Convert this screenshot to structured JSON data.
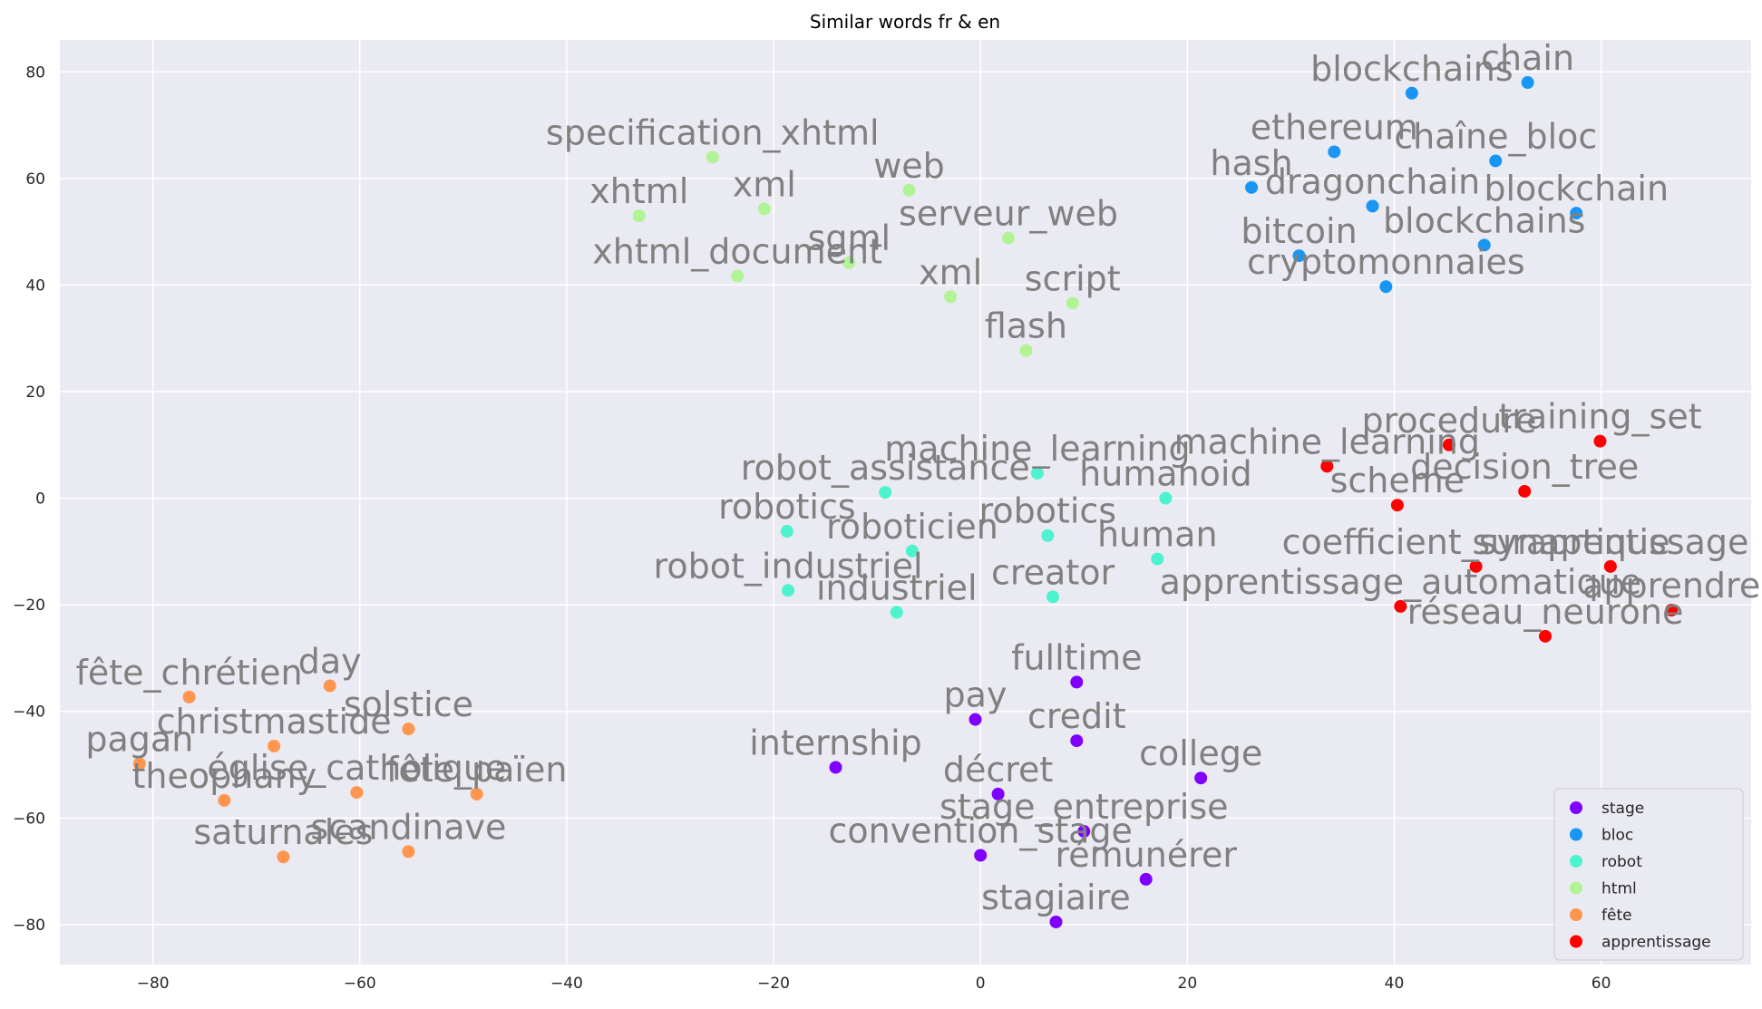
{
  "chart_data": {
    "type": "scatter",
    "title": "Similar words fr & en",
    "xlabel": "",
    "ylabel": "",
    "xlim": [
      -89,
      74.5
    ],
    "ylim": [
      -87.5,
      86
    ],
    "xticks": [
      -80,
      -60,
      -40,
      -20,
      0,
      20,
      40,
      60
    ],
    "yticks": [
      -80,
      -60,
      -40,
      -20,
      0,
      20,
      40,
      60,
      80
    ],
    "xtick_labels": [
      "−80",
      "−60",
      "−40",
      "−20",
      "0",
      "20",
      "40",
      "60"
    ],
    "ytick_labels": [
      "−80",
      "−60",
      "−40",
      "−20",
      "0",
      "20",
      "40",
      "60",
      "80"
    ],
    "grid": true,
    "legend_position": "lower-right",
    "background": "#eaeaf2",
    "series": [
      {
        "name": "stage",
        "color": "#8000ff",
        "points": [
          {
            "x": 9.3,
            "y": -34.5,
            "label": "fulltime"
          },
          {
            "x": -0.5,
            "y": -41.5,
            "label": "pay"
          },
          {
            "x": 9.3,
            "y": -45.5,
            "label": "credit"
          },
          {
            "x": -14.0,
            "y": -50.5,
            "label": "internship"
          },
          {
            "x": 21.3,
            "y": -52.5,
            "label": "college"
          },
          {
            "x": 1.7,
            "y": -55.5,
            "label": "décret"
          },
          {
            "x": 10.0,
            "y": -62.5,
            "label": "stage_entreprise"
          },
          {
            "x": 0.0,
            "y": -67.0,
            "label": "convention_stage"
          },
          {
            "x": 16.0,
            "y": -71.5,
            "label": "rémunérer"
          },
          {
            "x": 7.3,
            "y": -79.5,
            "label": "stagiaire"
          }
        ]
      },
      {
        "name": "bloc",
        "color": "#1996f3",
        "points": [
          {
            "x": 41.7,
            "y": 76.0,
            "label": "blockchains"
          },
          {
            "x": 52.9,
            "y": 78.0,
            "label": "chain"
          },
          {
            "x": 34.2,
            "y": 65.0,
            "label": "ethereum"
          },
          {
            "x": 49.8,
            "y": 63.3,
            "label": "chaîne_bloc"
          },
          {
            "x": 26.2,
            "y": 58.3,
            "label": "hash"
          },
          {
            "x": 37.9,
            "y": 54.8,
            "label": "dragonchain"
          },
          {
            "x": 57.6,
            "y": 53.5,
            "label": "blockchain"
          },
          {
            "x": 48.7,
            "y": 47.5,
            "label": "blockchains"
          },
          {
            "x": 30.8,
            "y": 45.5,
            "label": "bitcoin"
          },
          {
            "x": 39.2,
            "y": 39.7,
            "label": "cryptomonnaies"
          }
        ]
      },
      {
        "name": "robot",
        "color": "#4df3ce",
        "points": [
          {
            "x": 5.5,
            "y": 4.7,
            "label": "machine_learning"
          },
          {
            "x": -9.2,
            "y": 1.1,
            "label": "robot_assistance"
          },
          {
            "x": 17.9,
            "y": 0.0,
            "label": "humanoid"
          },
          {
            "x": -18.7,
            "y": -6.2,
            "label": "robotics"
          },
          {
            "x": 6.5,
            "y": -7.0,
            "label": "robotics"
          },
          {
            "x": -6.6,
            "y": -9.9,
            "label": "roboticien"
          },
          {
            "x": 17.1,
            "y": -11.4,
            "label": "human"
          },
          {
            "x": -18.6,
            "y": -17.3,
            "label": "robot_industriel"
          },
          {
            "x": 7.0,
            "y": -18.5,
            "label": "creator"
          },
          {
            "x": -8.1,
            "y": -21.4,
            "label": "industriel"
          }
        ]
      },
      {
        "name": "html",
        "color": "#b2f396",
        "points": [
          {
            "x": -25.9,
            "y": 64.0,
            "label": "specification_xhtml"
          },
          {
            "x": -6.9,
            "y": 57.8,
            "label": "web"
          },
          {
            "x": -20.9,
            "y": 54.3,
            "label": "xml"
          },
          {
            "x": -33.0,
            "y": 53.0,
            "label": "xhtml"
          },
          {
            "x": 2.7,
            "y": 48.8,
            "label": "serveur_web"
          },
          {
            "x": -12.7,
            "y": 44.2,
            "label": "sgml"
          },
          {
            "x": -23.5,
            "y": 41.7,
            "label": "xhtml_document"
          },
          {
            "x": -2.9,
            "y": 37.8,
            "label": "xml"
          },
          {
            "x": 8.9,
            "y": 36.6,
            "label": "script"
          },
          {
            "x": 4.4,
            "y": 27.7,
            "label": "flash"
          }
        ]
      },
      {
        "name": "fête",
        "color": "#ff964f",
        "points": [
          {
            "x": -62.9,
            "y": -35.2,
            "label": "day"
          },
          {
            "x": -76.5,
            "y": -37.3,
            "label": "fête_chrétien"
          },
          {
            "x": -55.3,
            "y": -43.3,
            "label": "solstice"
          },
          {
            "x": -68.3,
            "y": -46.5,
            "label": "christmastide"
          },
          {
            "x": -81.3,
            "y": -49.8,
            "label": "pagan"
          },
          {
            "x": -60.3,
            "y": -55.2,
            "label": "église_catholique"
          },
          {
            "x": -48.7,
            "y": -55.5,
            "label": "fête_païen"
          },
          {
            "x": -73.1,
            "y": -56.7,
            "label": "theophany"
          },
          {
            "x": -55.3,
            "y": -66.3,
            "label": "scandinave"
          },
          {
            "x": -67.4,
            "y": -67.3,
            "label": "saturnales"
          }
        ]
      },
      {
        "name": "apprentissage",
        "color": "#ff0000",
        "points": [
          {
            "x": 59.9,
            "y": 10.7,
            "label": "training_set"
          },
          {
            "x": 45.3,
            "y": 10.0,
            "label": "procedure"
          },
          {
            "x": 33.5,
            "y": 6.0,
            "label": "machine_learning"
          },
          {
            "x": 52.6,
            "y": 1.3,
            "label": "decision_tree"
          },
          {
            "x": 40.3,
            "y": -1.3,
            "label": "scheme"
          },
          {
            "x": 47.9,
            "y": -12.8,
            "label": "coefficient_synaptique"
          },
          {
            "x": 60.9,
            "y": -12.8,
            "label": "suraprentissage"
          },
          {
            "x": 40.6,
            "y": -20.3,
            "label": "apprentissage_automatique"
          },
          {
            "x": 66.8,
            "y": -21.0,
            "label": "apprendre"
          },
          {
            "x": 54.6,
            "y": -25.9,
            "label": "réseau_neurone"
          }
        ]
      }
    ]
  }
}
